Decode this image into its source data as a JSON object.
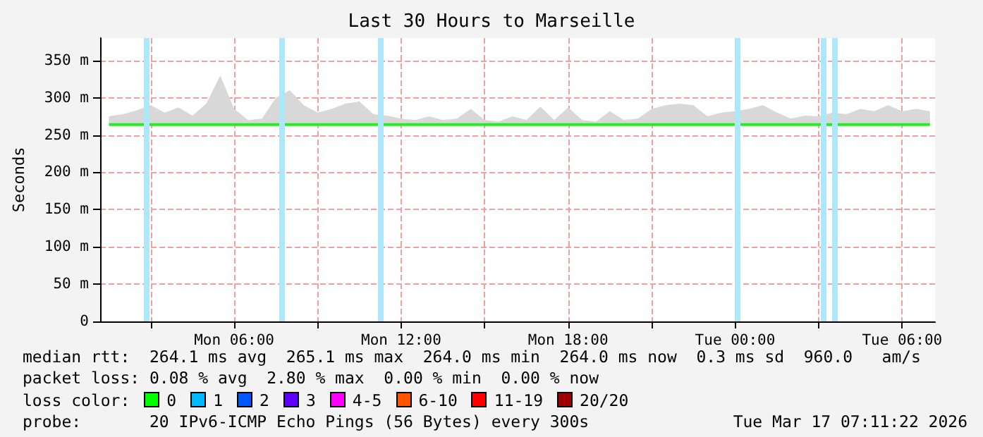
{
  "chart_data": {
    "type": "line",
    "title": "Last 30 Hours to Marseille",
    "ylabel": "Seconds",
    "xlim": [
      "2026-03-16T01:11",
      "2026-03-17T07:11"
    ],
    "xticks": [
      {
        "value": "2026-03-16T03:00",
        "label": null
      },
      {
        "value": "2026-03-16T06:00",
        "label": "Mon 06:00"
      },
      {
        "value": "2026-03-16T09:00",
        "label": null
      },
      {
        "value": "2026-03-16T12:00",
        "label": "Mon 12:00"
      },
      {
        "value": "2026-03-16T15:00",
        "label": null
      },
      {
        "value": "2026-03-16T18:00",
        "label": "Mon 18:00"
      },
      {
        "value": "2026-03-16T21:00",
        "label": null
      },
      {
        "value": "2026-03-17T00:00",
        "label": "Tue 00:00"
      },
      {
        "value": "2026-03-17T03:00",
        "label": null
      },
      {
        "value": "2026-03-17T06:00",
        "label": "Tue 06:00"
      }
    ],
    "ylim": [
      0,
      380
    ],
    "yticks": [
      0,
      {
        "value": 50,
        "label": "50 m"
      },
      {
        "value": 100,
        "label": "100 m"
      },
      {
        "value": 150,
        "label": "150 m"
      },
      {
        "value": 200,
        "label": "200 m"
      },
      {
        "value": 250,
        "label": "250 m"
      },
      {
        "value": 300,
        "label": "300 m"
      },
      {
        "value": 350,
        "label": "350 m"
      }
    ],
    "grid": true,
    "marker": "none",
    "x": [
      "2026-03-16T01:30",
      "2026-03-16T02:00",
      "2026-03-16T02:30",
      "2026-03-16T03:00",
      "2026-03-16T03:30",
      "2026-03-16T04:00",
      "2026-03-16T04:30",
      "2026-03-16T05:00",
      "2026-03-16T05:30",
      "2026-03-16T06:00",
      "2026-03-16T06:30",
      "2026-03-16T07:00",
      "2026-03-16T07:30",
      "2026-03-16T08:00",
      "2026-03-16T08:30",
      "2026-03-16T09:00",
      "2026-03-16T09:30",
      "2026-03-16T10:00",
      "2026-03-16T10:30",
      "2026-03-16T11:00",
      "2026-03-16T11:30",
      "2026-03-16T12:00",
      "2026-03-16T12:30",
      "2026-03-16T13:00",
      "2026-03-16T13:30",
      "2026-03-16T14:00",
      "2026-03-16T14:30",
      "2026-03-16T15:00",
      "2026-03-16T15:30",
      "2026-03-16T16:00",
      "2026-03-16T16:30",
      "2026-03-16T17:00",
      "2026-03-16T17:30",
      "2026-03-16T18:00",
      "2026-03-16T18:30",
      "2026-03-16T19:00",
      "2026-03-16T19:30",
      "2026-03-16T20:00",
      "2026-03-16T20:30",
      "2026-03-16T21:00",
      "2026-03-16T21:30",
      "2026-03-16T22:00",
      "2026-03-16T22:30",
      "2026-03-16T23:00",
      "2026-03-16T23:30",
      "2026-03-17T00:00",
      "2026-03-17T00:30",
      "2026-03-17T01:00",
      "2026-03-17T01:30",
      "2026-03-17T02:00",
      "2026-03-17T02:30",
      "2026-03-17T03:00",
      "2026-03-17T03:30",
      "2026-03-17T04:00",
      "2026-03-17T04:30",
      "2026-03-17T05:00",
      "2026-03-17T05:30",
      "2026-03-17T06:00",
      "2026-03-17T06:30",
      "2026-03-17T07:00"
    ],
    "series": [
      {
        "color": "#22ee22",
        "values": [
          264,
          264,
          264,
          264,
          264,
          264,
          264,
          264,
          264,
          264,
          264,
          264,
          264,
          264,
          264,
          264,
          264,
          264,
          264,
          264,
          264,
          264,
          264,
          264,
          264,
          264,
          264,
          264,
          264,
          264,
          264,
          264,
          264,
          264,
          264,
          264,
          264,
          264,
          264,
          264,
          264,
          264,
          264,
          264,
          264,
          264,
          264,
          264,
          264,
          264,
          264,
          264,
          264,
          264,
          264,
          264,
          264,
          264,
          264,
          264
        ],
        "lower": [
          264,
          264,
          264,
          264,
          264,
          264,
          264,
          264,
          264,
          264,
          264,
          264,
          264,
          264,
          264,
          264,
          264,
          264,
          264,
          264,
          264,
          264,
          264,
          264,
          264,
          264,
          264,
          264,
          264,
          264,
          264,
          264,
          264,
          264,
          264,
          264,
          264,
          264,
          264,
          264,
          264,
          264,
          264,
          264,
          264,
          264,
          264,
          264,
          264,
          264,
          264,
          264,
          264,
          264,
          264,
          264,
          264,
          264,
          264,
          264
        ],
        "upper": [
          275,
          278,
          283,
          290,
          280,
          287,
          276,
          292,
          330,
          285,
          270,
          272,
          300,
          310,
          290,
          280,
          285,
          292,
          295,
          278,
          276,
          272,
          270,
          275,
          270,
          272,
          285,
          270,
          268,
          275,
          270,
          288,
          270,
          287,
          270,
          268,
          282,
          270,
          272,
          285,
          290,
          292,
          290,
          275,
          280,
          282,
          285,
          290,
          280,
          272,
          276,
          275,
          280,
          278,
          285,
          282,
          290,
          282,
          285,
          282
        ]
      }
    ],
    "ref_lines": [
      {
        "axis": "x",
        "value": "2026-03-16T02:51",
        "color": "#aee6fa"
      },
      {
        "axis": "x",
        "value": "2026-03-16T07:42",
        "color": "#aee6fa"
      },
      {
        "axis": "x",
        "value": "2026-03-16T11:15",
        "color": "#aee6fa"
      },
      {
        "axis": "x",
        "value": "2026-03-17T00:06",
        "color": "#aee6fa"
      },
      {
        "axis": "x",
        "value": "2026-03-17T03:09",
        "color": "#aee6fa"
      },
      {
        "axis": "x",
        "value": "2026-03-17T03:33",
        "color": "#aee6fa"
      }
    ],
    "annotations": [
      "median rtt:  264.1 ms avg  265.1 ms max  264.0 ms min  264.0 ms now  0.3 ms sd  960.0   am/s",
      "packet loss: 0.08 % avg  2.80 % max  0.00 % min  0.00 % now",
      "loss color:",
      "0",
      "1",
      "2",
      "3",
      "4-5",
      "6-10",
      "11-19",
      "20/20",
      "probe:       20 IPv6-ICMP Echo Pings (56 Bytes) every 300s",
      "Tue Mar 17 07:11:22 2026"
    ]
  }
}
